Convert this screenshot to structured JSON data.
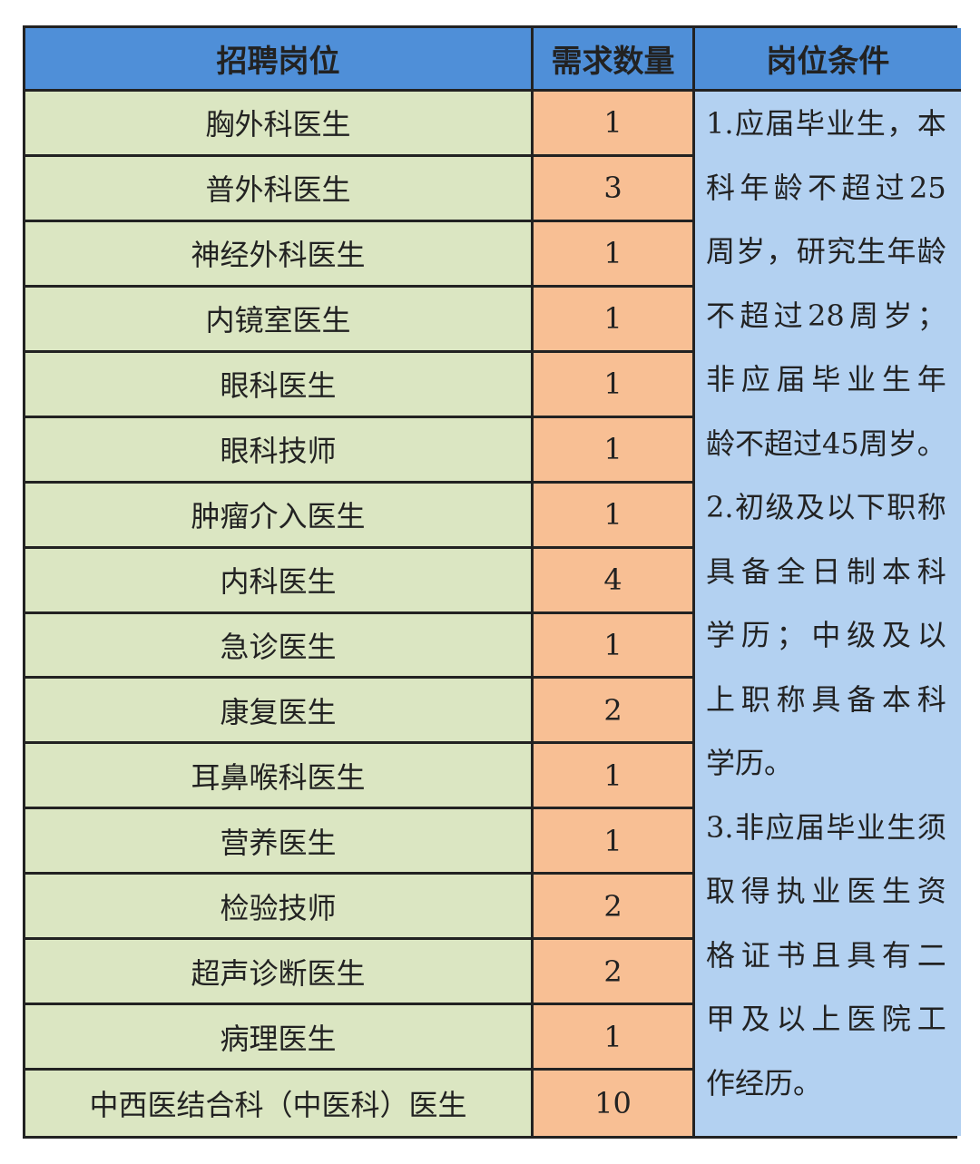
{
  "header": {
    "position": "招聘岗位",
    "count": "需求数量",
    "conditions": "岗位条件"
  },
  "rows": [
    {
      "position": "胸外科医生",
      "count": "1"
    },
    {
      "position": "普外科医生",
      "count": "3"
    },
    {
      "position": "神经外科医生",
      "count": "1"
    },
    {
      "position": "内镜室医生",
      "count": "1"
    },
    {
      "position": "眼科医生",
      "count": "1"
    },
    {
      "position": "眼科技师",
      "count": "1"
    },
    {
      "position": "肿瘤介入医生",
      "count": "1"
    },
    {
      "position": "内科医生",
      "count": "4"
    },
    {
      "position": "急诊医生",
      "count": "1"
    },
    {
      "position": "康复医生",
      "count": "2"
    },
    {
      "position": "耳鼻喉科医生",
      "count": "1"
    },
    {
      "position": "营养医生",
      "count": "1"
    },
    {
      "position": "检验技师",
      "count": "2"
    },
    {
      "position": "超声诊断医生",
      "count": "2"
    },
    {
      "position": "病理医生",
      "count": "1"
    },
    {
      "position": "中西医结合科（中医科）医生",
      "count": "10"
    }
  ],
  "conditions_lines": [
    "1.应届毕业生，本",
    "科年龄不超过25",
    "周岁，研究生年龄",
    "不超过28周岁；",
    "非应届毕业生年",
    "龄不超过45周岁。",
    "2.初级及以下职称",
    "具备全日制本科",
    "学历；中级及以",
    "上职称具备本科",
    "学历。",
    "3.非应届毕业生须",
    "取得执业医生资",
    "格证书且具有二",
    "甲及以上医院工",
    "作经历。"
  ],
  "colors": {
    "header": "#4f8fd8",
    "position_cell": "#dbe6c2",
    "count_cell": "#f8bf94",
    "conditions_cell": "#b3d1f1"
  }
}
